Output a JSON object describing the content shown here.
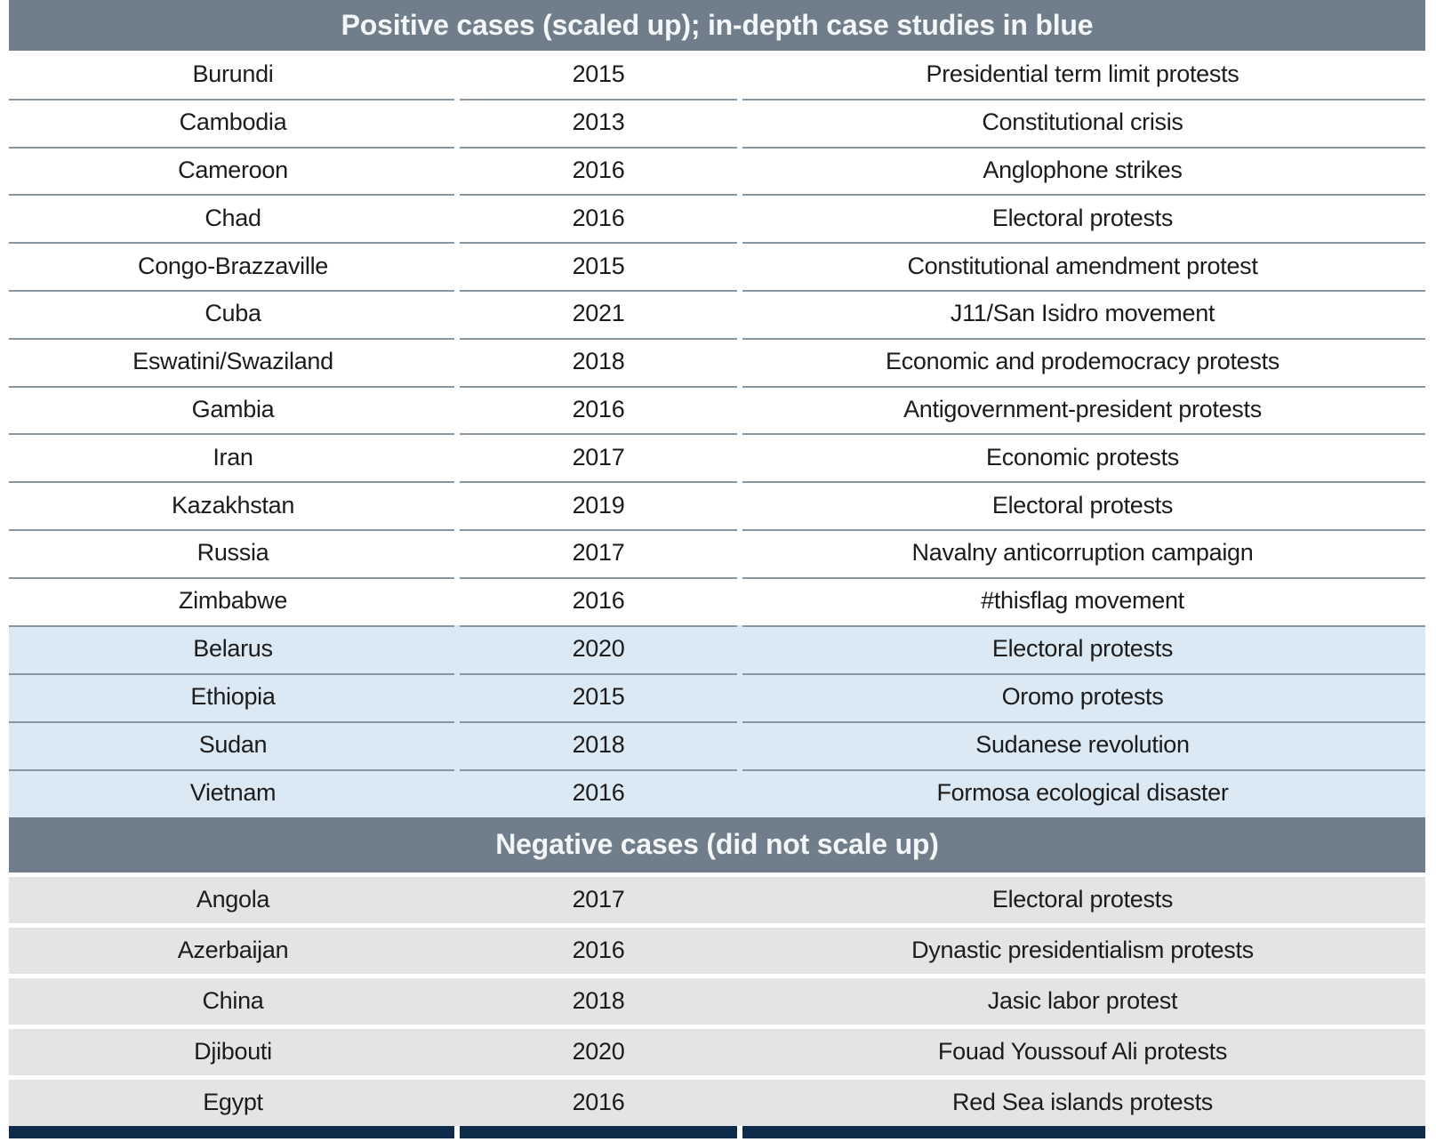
{
  "table": {
    "positive_header": "Positive cases (scaled up); in-depth case studies in blue",
    "negative_header": "Negative cases (did not scale up)",
    "positive_rows": [
      {
        "country": "Burundi",
        "year": "2015",
        "event": "Presidential term limit protests",
        "highlight": false
      },
      {
        "country": "Cambodia",
        "year": "2013",
        "event": "Constitutional crisis",
        "highlight": false
      },
      {
        "country": "Cameroon",
        "year": "2016",
        "event": "Anglophone strikes",
        "highlight": false
      },
      {
        "country": "Chad",
        "year": "2016",
        "event": "Electoral protests",
        "highlight": false
      },
      {
        "country": "Congo-Brazzaville",
        "year": "2015",
        "event": "Constitutional amendment protest",
        "highlight": false
      },
      {
        "country": "Cuba",
        "year": "2021",
        "event": "J11/San Isidro movement",
        "highlight": false
      },
      {
        "country": "Eswatini/Swaziland",
        "year": "2018",
        "event": "Economic and prodemocracy protests",
        "highlight": false
      },
      {
        "country": "Gambia",
        "year": "2016",
        "event": "Antigovernment-president protests",
        "highlight": false
      },
      {
        "country": "Iran",
        "year": "2017",
        "event": "Economic protests",
        "highlight": false
      },
      {
        "country": "Kazakhstan",
        "year": "2019",
        "event": "Electoral protests",
        "highlight": false
      },
      {
        "country": "Russia",
        "year": "2017",
        "event": "Navalny anticorruption campaign",
        "highlight": false
      },
      {
        "country": "Zimbabwe",
        "year": "2016",
        "event": "#thisflag movement",
        "highlight": false
      },
      {
        "country": "Belarus",
        "year": "2020",
        "event": "Electoral protests",
        "highlight": true
      },
      {
        "country": "Ethiopia",
        "year": "2015",
        "event": "Oromo protests",
        "highlight": true
      },
      {
        "country": "Sudan",
        "year": "2018",
        "event": "Sudanese revolution",
        "highlight": true
      },
      {
        "country": "Vietnam",
        "year": "2016",
        "event": "Formosa ecological disaster",
        "highlight": true
      }
    ],
    "negative_rows": [
      {
        "country": "Angola",
        "year": "2017",
        "event": "Electoral protests",
        "highlight": false
      },
      {
        "country": "Azerbaijan",
        "year": "2016",
        "event": "Dynastic presidentialism protests",
        "highlight": false
      },
      {
        "country": "China",
        "year": "2018",
        "event": "Jasic labor protest",
        "highlight": false
      },
      {
        "country": "Djibouti",
        "year": "2020",
        "event": "Fouad Youssouf Ali protests",
        "highlight": false
      },
      {
        "country": "Egypt",
        "year": "2016",
        "event": "Red Sea islands protests",
        "highlight": false
      }
    ],
    "colors": {
      "section_header_bg": "#6f7e8a",
      "section_header_text": "#f4f7f9",
      "highlight_row_bg": "#dbe9f5",
      "negative_row_bg": "#e4e4e4",
      "separator_line": "#8796a0",
      "bottom_rule": "#0e2c4a",
      "body_text": "#1c1c1c"
    }
  }
}
